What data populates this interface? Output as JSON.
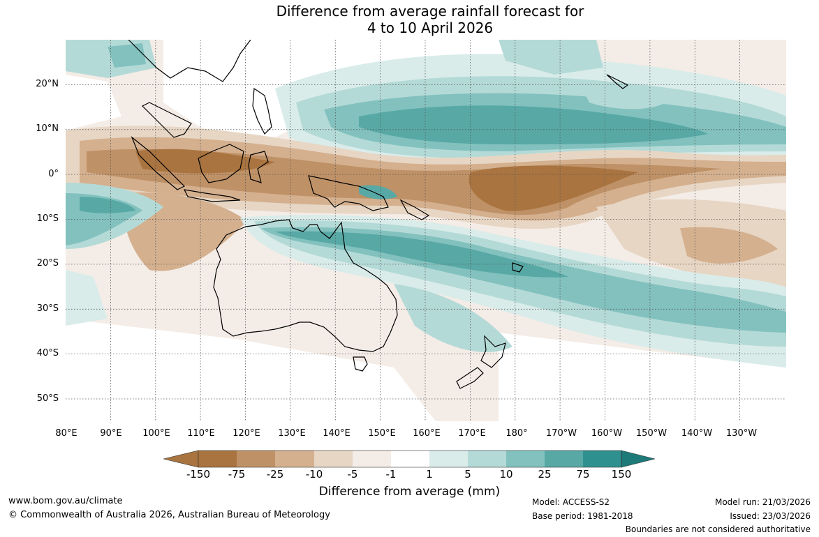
{
  "title": {
    "line1": "Difference from average rainfall forecast for",
    "line2": "4 to 10 April 2026"
  },
  "map": {
    "lat_labels": [
      "20°N",
      "10°N",
      "0°",
      "10°S",
      "20°S",
      "30°S",
      "40°S",
      "50°S"
    ],
    "lon_labels": [
      "80°E",
      "90°E",
      "100°E",
      "110°E",
      "120°E",
      "130°E",
      "140°E",
      "150°E",
      "160°E",
      "170°E",
      "180°",
      "170°W",
      "160°W",
      "150°W",
      "140°W",
      "130°W"
    ]
  },
  "legend": {
    "ticks": [
      "-150",
      "-75",
      "-25",
      "-10",
      "-5",
      "-1",
      "1",
      "5",
      "10",
      "25",
      "75",
      "150"
    ],
    "colors": [
      "#a97440",
      "#bf9166",
      "#d4b08f",
      "#e7d6c4",
      "#f4ece6",
      "#ffffff",
      "#d9ecea",
      "#b4dad7",
      "#82c1be",
      "#58a9a6",
      "#2f918f",
      "#1e7a78"
    ],
    "label": "Difference from average (mm)"
  },
  "footer": {
    "url": "www.bom.gov.au/climate",
    "copyright": "© Commonwealth of Australia 2026, Australian Bureau of Meteorology",
    "model": "Model: ACCESS-S2",
    "base_period": "Base period: 1981-2018",
    "model_run": "Model run: 21/03/2026",
    "issued": "Issued: 23/03/2026",
    "disclaimer": "Boundaries are not considered authoritative"
  }
}
